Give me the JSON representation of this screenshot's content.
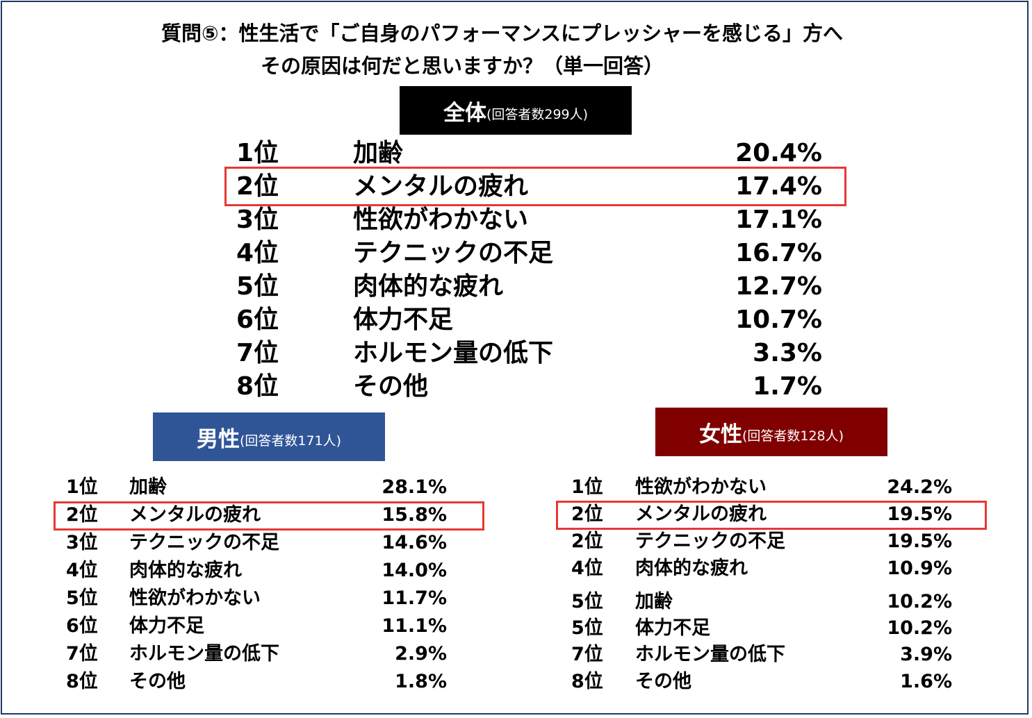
{
  "title": {
    "line1": "質問⑤：性生活で「ご自身のパフォーマンスにプレッシャーを感じる」方へ",
    "line2": "その原因は何だと思いますか？（単一回答）"
  },
  "overall": {
    "header_label": "全体",
    "header_count": "(回答者数299人)",
    "rows": [
      {
        "rank": "1位",
        "item": "加齢",
        "pct": "20.4%"
      },
      {
        "rank": "2位",
        "item": "メンタルの疲れ",
        "pct": "17.4%"
      },
      {
        "rank": "3位",
        "item": "性欲がわかない",
        "pct": "17.1%"
      },
      {
        "rank": "4位",
        "item": "テクニックの不足",
        "pct": "16.7%"
      },
      {
        "rank": "5位",
        "item": "肉体的な疲れ",
        "pct": "12.7%"
      },
      {
        "rank": "6位",
        "item": "体力不足",
        "pct": "10.7%"
      },
      {
        "rank": "7位",
        "item": "ホルモン量の低下",
        "pct": "3.3%"
      },
      {
        "rank": "8位",
        "item": "その他",
        "pct": "1.7%"
      }
    ]
  },
  "male": {
    "header_label": "男性",
    "header_count": "(回答者数171人)",
    "rows": [
      {
        "rank": "1位",
        "item": "加齢",
        "pct": "28.1%"
      },
      {
        "rank": "2位",
        "item": "メンタルの疲れ",
        "pct": "15.8%"
      },
      {
        "rank": "3位",
        "item": "テクニックの不足",
        "pct": "14.6%"
      },
      {
        "rank": "4位",
        "item": "肉体的な疲れ",
        "pct": "14.0%"
      },
      {
        "rank": "5位",
        "item": "性欲がわかない",
        "pct": "11.7%"
      },
      {
        "rank": "6位",
        "item": "体力不足",
        "pct": "11.1%"
      },
      {
        "rank": "7位",
        "item": "ホルモン量の低下",
        "pct": "2.9%"
      },
      {
        "rank": "8位",
        "item": "その他",
        "pct": "1.8%"
      }
    ]
  },
  "female": {
    "header_label": "女性",
    "header_count": "(回答者数128人)",
    "rows": [
      {
        "rank": "1位",
        "item": "性欲がわかない",
        "pct": "24.2%"
      },
      {
        "rank": "2位",
        "item": "メンタルの疲れ",
        "pct": "19.5%"
      },
      {
        "rank": "2位",
        "item": "テクニックの不足",
        "pct": "19.5%"
      },
      {
        "rank": "4位",
        "item": "肉体的な疲れ",
        "pct": "10.9%"
      },
      {
        "rank": "5位",
        "item": "加齢",
        "pct": "10.2%"
      },
      {
        "rank": "5位",
        "item": "体力不足",
        "pct": "10.2%"
      },
      {
        "rank": "7位",
        "item": "ホルモン量の低下",
        "pct": "3.9%"
      },
      {
        "rank": "8位",
        "item": "その他",
        "pct": "1.6%"
      }
    ]
  },
  "colors": {
    "overall_header": "#000000",
    "male_header": "#2f5597",
    "female_header": "#800000",
    "highlight_border": "#e53935",
    "frame_border": "#1f3864"
  }
}
